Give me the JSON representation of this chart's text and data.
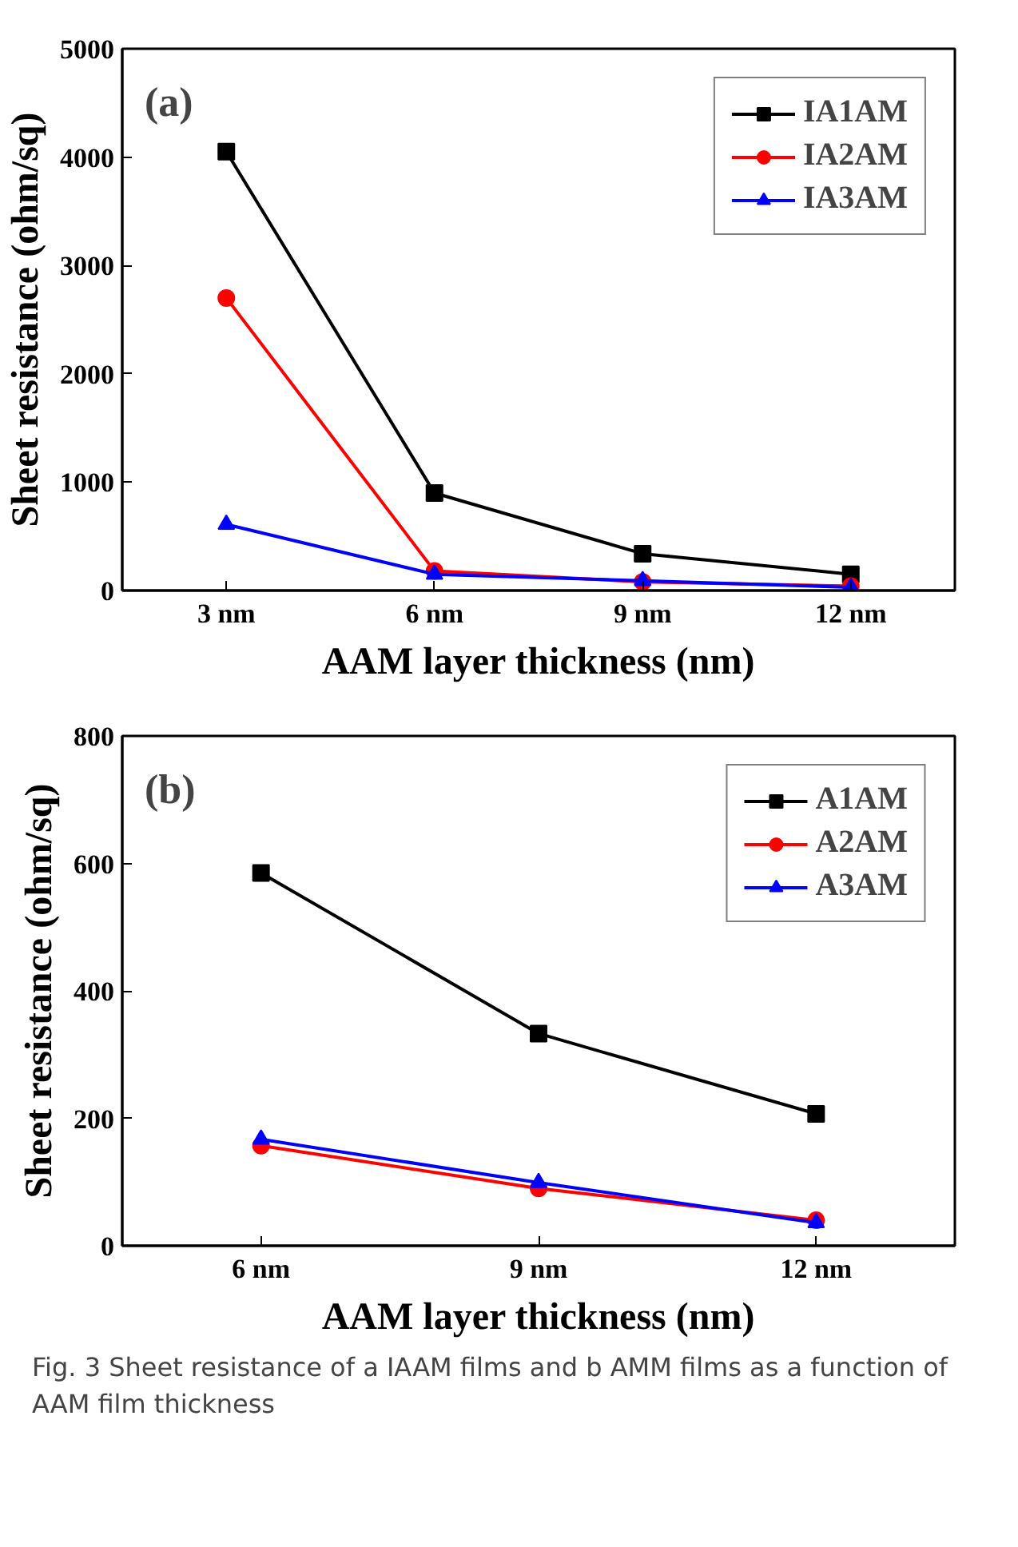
{
  "chart_data": [
    {
      "type": "line",
      "xlabel": "AAM layer thickness (nm)",
      "ylabel": "Sheet resistance (ohm/sq)",
      "categories": [
        "3 nm",
        "6 nm",
        "9 nm",
        "12 nm"
      ],
      "ylim": [
        0,
        5000
      ],
      "yticks": [
        0,
        1000,
        2000,
        3000,
        4000,
        5000
      ],
      "grid": false,
      "legend": "top right",
      "annotations": [
        "(a)"
      ],
      "line_style": "solid",
      "series": [
        {
          "name": "IA1AM",
          "color": "#000000",
          "marker": "square",
          "values": [
            4050,
            900,
            340,
            150
          ]
        },
        {
          "name": "IA2AM",
          "color": "#ff0000",
          "marker": "circle",
          "values": [
            2700,
            180,
            80,
            40
          ]
        },
        {
          "name": "IA3AM",
          "color": "#0000ff",
          "marker": "triangle",
          "values": [
            610,
            150,
            90,
            30
          ]
        }
      ]
    },
    {
      "type": "line",
      "xlabel": "AAM layer thickness (nm)",
      "ylabel": "Sheet resistance (ohm/sq)",
      "categories": [
        "6 nm",
        "9 nm",
        "12 nm"
      ],
      "ylim": [
        0,
        800
      ],
      "yticks": [
        0,
        200,
        400,
        600,
        800
      ],
      "grid": false,
      "legend": "top right",
      "annotations": [
        "(b)",
        "Fig. 3 Sheet resistance of a IAAM films and b AMM films as a function of AAM film thickness"
      ],
      "line_style": "solid",
      "series": [
        {
          "name": "A1AM",
          "color": "#000000",
          "marker": "square",
          "values": [
            585,
            333,
            207
          ]
        },
        {
          "name": "A2AM",
          "color": "#ff0000",
          "marker": "circle",
          "values": [
            157,
            90,
            40
          ]
        },
        {
          "name": "A3AM",
          "color": "#0000ff",
          "marker": "triangle",
          "values": [
            167,
            99,
            36
          ]
        }
      ]
    }
  ]
}
